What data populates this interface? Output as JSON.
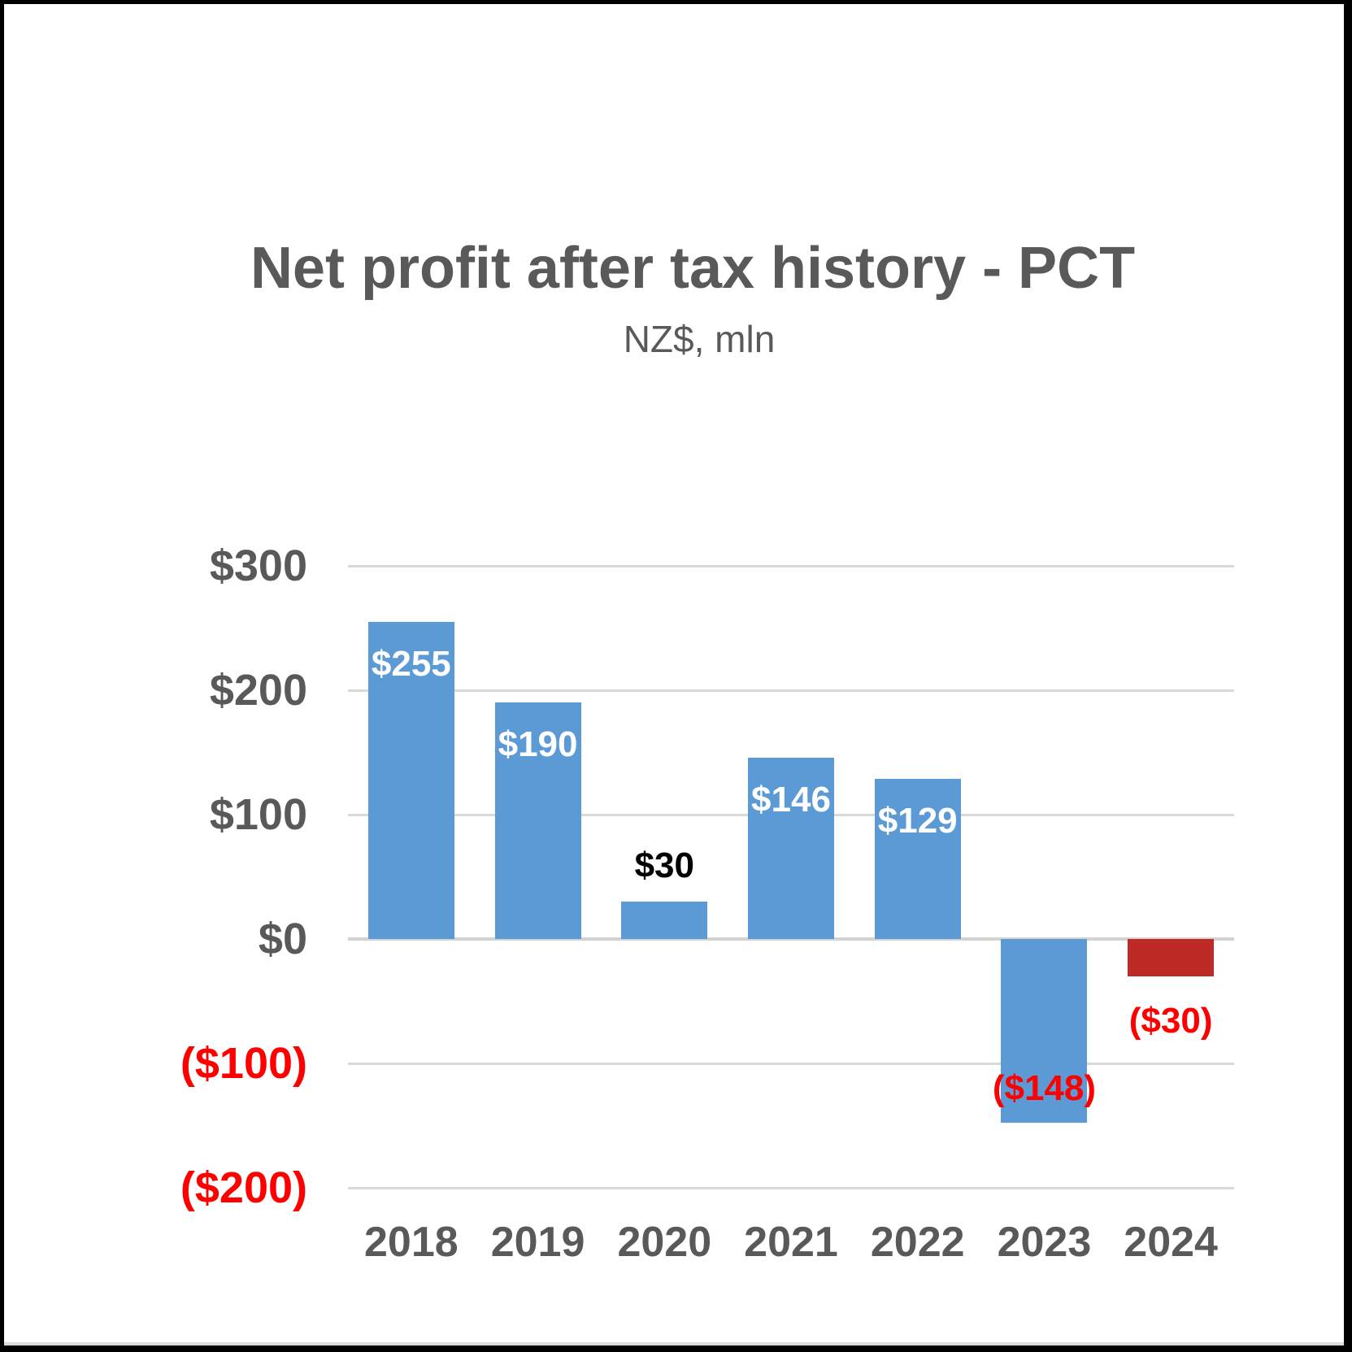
{
  "page": {
    "frame_color": "#000000",
    "background_color": "#FFFFFF"
  },
  "chart_data": {
    "type": "bar",
    "title": "Net profit after tax history - PCT",
    "subtitle": "NZ$, mln",
    "categories": [
      "2018",
      "2019",
      "2020",
      "2021",
      "2022",
      "2023",
      "2024"
    ],
    "values": [
      255,
      190,
      30,
      146,
      129,
      -148,
      -30
    ],
    "bar_labels": [
      "$255",
      "$190",
      "$30",
      "$146",
      "$129",
      "($148)",
      "($30)"
    ],
    "bar_colors": [
      "#5B9AD5",
      "#5B9AD5",
      "#5B9AD5",
      "#5B9AD5",
      "#5B9AD5",
      "#5B9AD5",
      "#BE2B26"
    ],
    "label_colors": [
      "#FFFFFF",
      "#FFFFFF",
      "#000000",
      "#FFFFFF",
      "#FFFFFF",
      "#FF0000",
      "#FF0000"
    ],
    "label_placements": [
      "inside-top",
      "inside-top",
      "above",
      "inside-top",
      "inside-top",
      "inside-bottom",
      "below"
    ],
    "y_ticks": [
      {
        "label": "$300",
        "value": 300,
        "color": "#595959"
      },
      {
        "label": "$200",
        "value": 200,
        "color": "#595959"
      },
      {
        "label": "$100",
        "value": 100,
        "color": "#595959"
      },
      {
        "label": "$0",
        "value": 0,
        "color": "#595959"
      },
      {
        "label": "($100)",
        "value": -100,
        "color": "#FF0000"
      },
      {
        "label": "($200)",
        "value": -200,
        "color": "#FF0000"
      }
    ],
    "ylim": [
      -200,
      300
    ],
    "grid": "horizontal",
    "gridline_color": "#D9D9D9",
    "axis_text_color": "#595959",
    "negative_text_color": "#FF0000",
    "legend": "none"
  }
}
